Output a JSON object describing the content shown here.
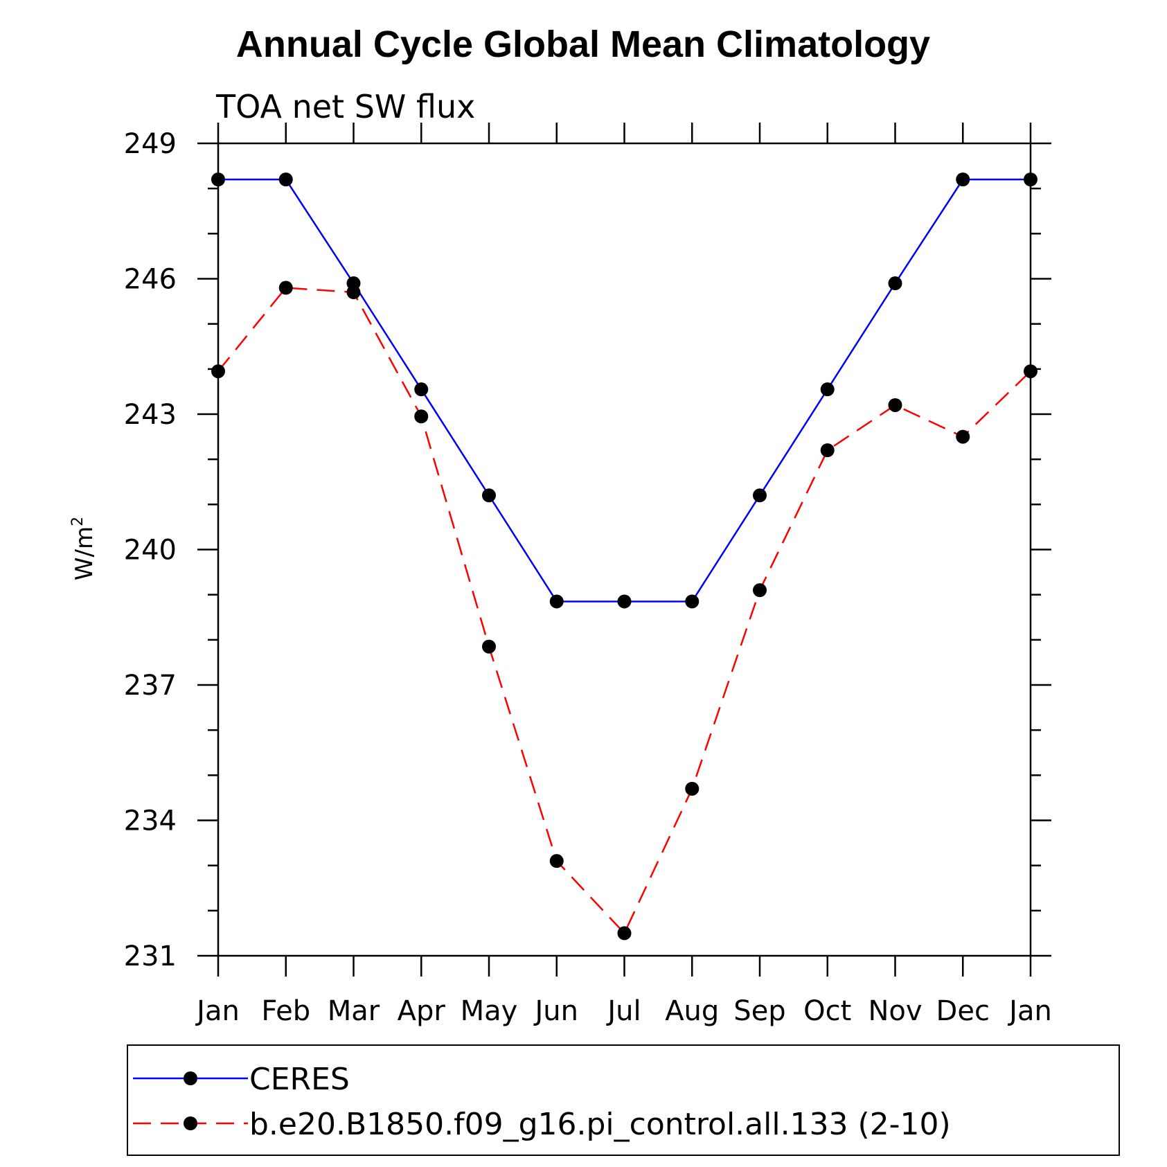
{
  "chart_data": {
    "type": "line",
    "title": "Annual Cycle Global Mean Climatology",
    "subtitle": "TOA net SW flux",
    "ylabel": "W/m",
    "ylabel_superscript": "2",
    "xlabel": "",
    "categories": [
      "Jan",
      "Feb",
      "Mar",
      "Apr",
      "May",
      "Jun",
      "Jul",
      "Aug",
      "Sep",
      "Oct",
      "Nov",
      "Dec",
      "Jan"
    ],
    "ylim": [
      231,
      249
    ],
    "yticks": [
      "231",
      "234",
      "237",
      "240",
      "243",
      "246",
      "249"
    ],
    "grid": false,
    "legend_position": "bottom",
    "series": [
      {
        "name": "CERES",
        "color": "#0000ff",
        "line_style": "solid",
        "marker": "filled-circle",
        "values": [
          248.2,
          248.2,
          245.9,
          243.55,
          241.2,
          238.85,
          238.85,
          238.85,
          241.2,
          243.55,
          245.9,
          248.2,
          248.2
        ]
      },
      {
        "name": "b.e20.B1850.f09_g16.pi_control.all.133 (2-10)",
        "color": "#ff0000",
        "line_style": "dashed",
        "marker": "filled-circle",
        "values": [
          243.95,
          245.8,
          245.7,
          242.95,
          237.85,
          233.1,
          231.5,
          234.7,
          239.1,
          242.2,
          243.2,
          242.5,
          243.95
        ]
      }
    ]
  }
}
